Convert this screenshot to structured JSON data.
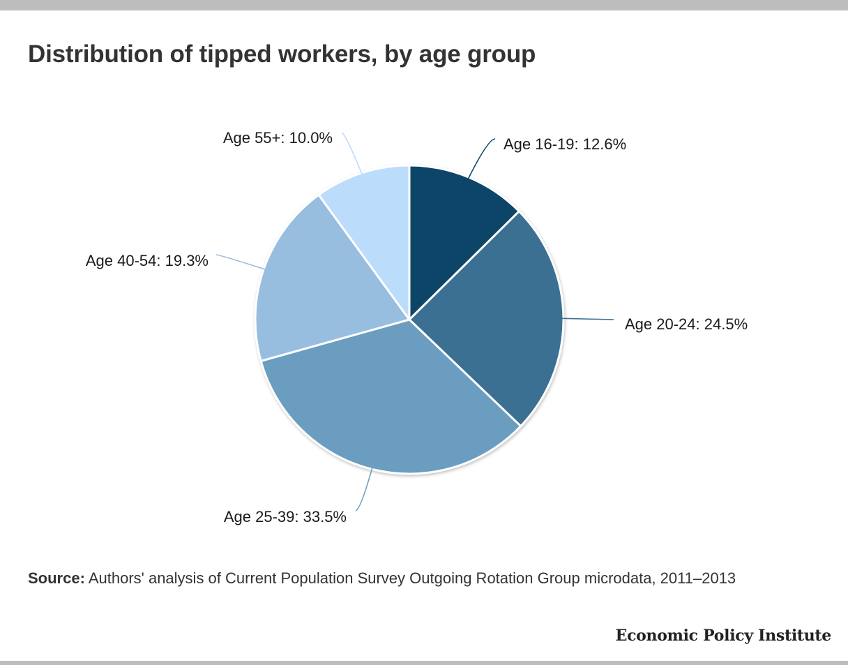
{
  "title": "Distribution of tipped workers, by age group",
  "chart_data": {
    "type": "pie",
    "title": "Distribution of tipped workers, by age group",
    "slices": [
      {
        "label": "Age 16-19: 12.6%",
        "category": "Age 16-19",
        "value": 12.6,
        "color": "#0b4467"
      },
      {
        "label": "Age 20-24: 24.5%",
        "category": "Age 20-24",
        "value": 24.5,
        "color": "#3b6f92"
      },
      {
        "label": "Age 25-39: 33.5%",
        "category": "Age 25-39",
        "value": 33.5,
        "color": "#6b9dbf"
      },
      {
        "label": "Age 40-54: 19.3%",
        "category": "Age 40-54",
        "value": 19.3,
        "color": "#97bddf"
      },
      {
        "label": "Age 55+: 10.0%",
        "category": "Age 55+",
        "value": 10.0,
        "color": "#bcdcfb"
      }
    ],
    "start_angle": "12 o'clock",
    "direction": "clockwise",
    "legend": "none"
  },
  "source": {
    "label": "Source:",
    "text": "Authors' analysis of Current Population Survey Outgoing Rotation Group microdata, 2011–2013"
  },
  "brand": "Economic Policy Institute",
  "colors": {
    "frame_bar": "#bdbdbd",
    "title_text": "#333333"
  }
}
